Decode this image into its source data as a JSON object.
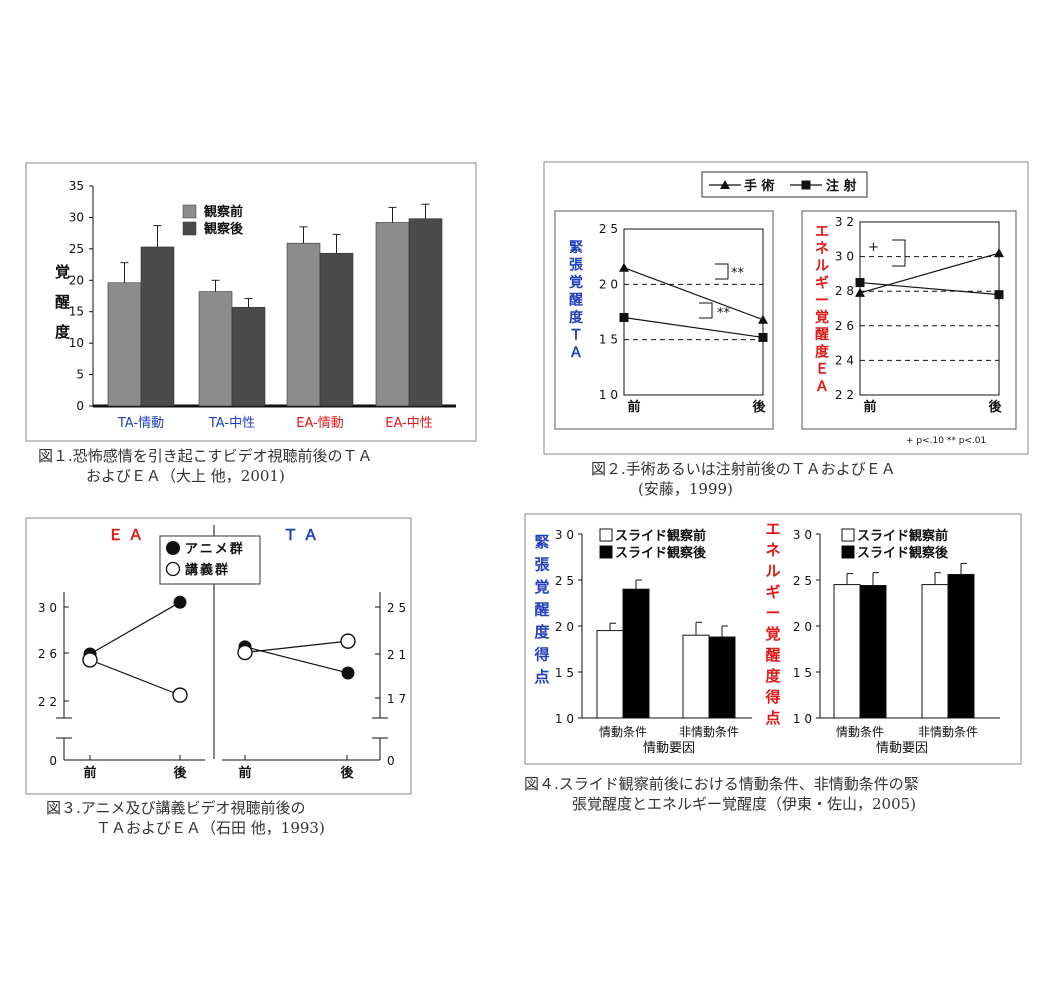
{
  "colors": {
    "before": "#8c8c8c",
    "after": "#4a4a4a",
    "blue": "#1f3fbf",
    "red": "#e01818",
    "black": "#000000",
    "white": "#ffffff"
  },
  "fig1": {
    "caption_line1": "図１.恐怖感情を引き起こすビデオ視聴前後のＴＡ",
    "caption_line2": "およびＥＡ（大上 他，2001)"
  },
  "fig2": {
    "caption_line1": "図２.手術あるいは注射前後のＴＡおよびＥＡ",
    "caption_line2": "(安藤，1999)",
    "legend_surgery": "手 術",
    "legend_injection": "注 射",
    "ta_axis_chars": [
      "緊",
      "張",
      "覚",
      "醒",
      "度",
      "Ｔ",
      "Ａ"
    ],
    "ea_axis_chars": [
      "エ",
      "ネ",
      "ル",
      "ギ",
      "ー",
      "覚",
      "醒",
      "度",
      "Ｅ",
      "Ａ"
    ],
    "sig1": "**",
    "sig2": "**",
    "sig3": "+",
    "footnote": "+ p<.10   ** p<.01"
  },
  "fig3": {
    "caption_line1": "図３.アニメ及び講義ビデオ視聴前後の",
    "caption_line2": "ＴＡおよびＥＡ（石田 他，1993)",
    "ea_title": "Ｅ Ａ",
    "ta_title": "Ｔ Ａ",
    "legend_anime": "アニメ群",
    "legend_lecture": "講義群"
  },
  "fig4": {
    "caption_line1": "図４.スライド観察前後における情動条件、非情動条件の緊",
    "caption_line2": "張覚醒度とエネルギー覚醒度（伊東・佐山，2005)",
    "legend_before": "スライド観察前",
    "legend_after": "スライド観察後",
    "xaxis_title": "情動要因",
    "ta_axis_chars": [
      "緊",
      "張",
      "覚",
      "醒",
      "度",
      "得",
      "点"
    ],
    "ea_axis_chars": [
      "エ",
      "ネ",
      "ル",
      "ギ",
      "ー",
      "覚",
      "醒",
      "度",
      "得",
      "点"
    ]
  },
  "chart_data": [
    {
      "id": "fig1",
      "type": "bar",
      "categories": [
        "TA-情動",
        "TA-中性",
        "EA-情動",
        "EA-中性"
      ],
      "series": [
        {
          "name": "観察前",
          "values": [
            19.6,
            18.2,
            25.9,
            29.2
          ],
          "errors": [
            3.2,
            1.8,
            2.6,
            2.4
          ]
        },
        {
          "name": "観察後",
          "values": [
            25.3,
            15.7,
            24.3,
            29.8
          ],
          "errors": [
            3.4,
            1.4,
            3.0,
            2.3
          ]
        }
      ],
      "ylabel": "覚醒度",
      "ylim": [
        0,
        35
      ],
      "yticks": [
        0,
        5,
        10,
        15,
        20,
        25,
        30,
        35
      ],
      "grid": false,
      "legend": "top-center"
    },
    {
      "id": "fig2-TA",
      "type": "line",
      "categories": [
        "前",
        "後"
      ],
      "series": [
        {
          "name": "手 術",
          "values": [
            21.5,
            16.8
          ]
        },
        {
          "name": "注 射",
          "values": [
            17.0,
            15.2
          ]
        }
      ],
      "ylim": [
        10,
        25
      ],
      "yticks": [
        10,
        15,
        20,
        25
      ],
      "tick_labels": [
        "1 0",
        "1 5",
        "2 0",
        "2 5"
      ],
      "gridlines": [
        15,
        20
      ]
    },
    {
      "id": "fig2-EA",
      "type": "line",
      "categories": [
        "前",
        "後"
      ],
      "series": [
        {
          "name": "手 術",
          "values": [
            27.9,
            30.2
          ]
        },
        {
          "name": "注 射",
          "values": [
            28.5,
            27.8
          ]
        }
      ],
      "ylim": [
        22,
        32
      ],
      "yticks": [
        22,
        24,
        26,
        28,
        30,
        32
      ],
      "tick_labels": [
        "2 2",
        "2 4",
        "2 6",
        "2 8",
        "3 0",
        "3 2"
      ],
      "gridlines": [
        24,
        26,
        28,
        30
      ]
    },
    {
      "id": "fig3-EA",
      "type": "line",
      "categories": [
        "前",
        "後"
      ],
      "series": [
        {
          "name": "アニメ群",
          "values": [
            26.0,
            30.4
          ]
        },
        {
          "name": "講義群",
          "values": [
            25.5,
            22.5
          ]
        }
      ],
      "tick_labels": [
        "0",
        "2 2",
        "2 6",
        "3 0"
      ]
    },
    {
      "id": "fig3-TA",
      "type": "line",
      "categories": [
        "前",
        "後"
      ],
      "series": [
        {
          "name": "アニメ群",
          "values": [
            21.5,
            19.2
          ]
        },
        {
          "name": "講義群",
          "values": [
            21.0,
            22.0
          ]
        }
      ],
      "tick_labels": [
        "0",
        "1 7",
        "2 1",
        "2 5"
      ]
    },
    {
      "id": "fig4-TA",
      "type": "bar",
      "categories": [
        "情動条件",
        "非情動条件"
      ],
      "series": [
        {
          "name": "スライド観察前",
          "values": [
            19.5,
            19.0
          ],
          "errors": [
            0.8,
            1.4
          ]
        },
        {
          "name": "スライド観察後",
          "values": [
            24.0,
            18.8
          ],
          "errors": [
            1.0,
            1.2
          ]
        }
      ],
      "xlabel": "情動要因",
      "ylim": [
        10,
        30
      ],
      "tick_labels": [
        "1 0",
        "1 5",
        "2 0",
        "2 5",
        "3 0"
      ]
    },
    {
      "id": "fig4-EA",
      "type": "bar",
      "categories": [
        "情動条件",
        "非情動条件"
      ],
      "series": [
        {
          "name": "スライド観察前",
          "values": [
            24.5,
            24.5
          ],
          "errors": [
            1.2,
            1.3
          ]
        },
        {
          "name": "スライド観察後",
          "values": [
            24.4,
            25.6
          ],
          "errors": [
            1.4,
            1.2
          ]
        }
      ],
      "xlabel": "情動要因",
      "ylim": [
        10,
        30
      ],
      "tick_labels": [
        "1 0",
        "1 5",
        "2 0",
        "2 5",
        "3 0"
      ]
    }
  ]
}
